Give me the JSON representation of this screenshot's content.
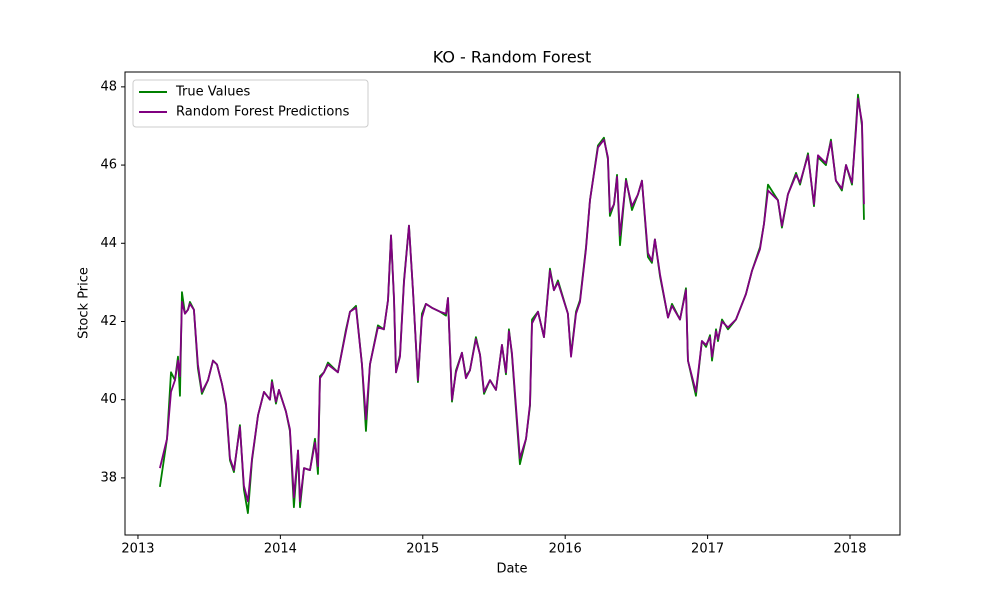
{
  "chart_data": {
    "type": "line",
    "title": "KO - Random Forest",
    "x_label": "Date",
    "y_label": "Stock Price",
    "x": [
      2013.154,
      2013.204,
      2013.232,
      2013.26,
      2013.281,
      2013.295,
      2013.309,
      2013.33,
      2013.351,
      2013.365,
      2013.393,
      2013.421,
      2013.449,
      2013.492,
      2013.527,
      2013.555,
      2013.59,
      2013.618,
      2013.646,
      2013.674,
      2013.716,
      2013.744,
      2013.772,
      2013.801,
      2013.843,
      2013.885,
      2013.927,
      2013.941,
      2013.969,
      2013.99,
      2014.039,
      2014.067,
      2014.095,
      2014.124,
      2014.138,
      2014.166,
      2014.208,
      2014.243,
      2014.264,
      2014.278,
      2014.306,
      2014.334,
      2014.404,
      2014.461,
      2014.489,
      2014.531,
      2014.573,
      2014.601,
      2014.629,
      2014.685,
      2014.727,
      2014.756,
      2014.777,
      2014.798,
      2014.812,
      2014.84,
      2014.868,
      2014.903,
      2014.931,
      2014.966,
      2014.994,
      2015.022,
      2015.064,
      2015.121,
      2015.163,
      2015.177,
      2015.205,
      2015.233,
      2015.275,
      2015.303,
      2015.331,
      2015.373,
      2015.402,
      2015.43,
      2015.472,
      2015.514,
      2015.556,
      2015.584,
      2015.605,
      2015.626,
      2015.682,
      2015.725,
      2015.753,
      2015.767,
      2015.809,
      2015.851,
      2015.893,
      2015.921,
      2015.949,
      2016.019,
      2016.041,
      2016.076,
      2016.104,
      2016.146,
      2016.174,
      2016.23,
      2016.272,
      2016.3,
      2016.314,
      2016.343,
      2016.364,
      2016.385,
      2016.427,
      2016.469,
      2016.511,
      2016.539,
      2016.581,
      2016.609,
      2016.63,
      2016.666,
      2016.722,
      2016.75,
      2016.806,
      2016.848,
      2016.862,
      2016.918,
      2016.96,
      2016.989,
      2017.017,
      2017.031,
      2017.059,
      2017.073,
      2017.101,
      2017.143,
      2017.199,
      2017.269,
      2017.312,
      2017.368,
      2017.396,
      2017.424,
      2017.494,
      2017.522,
      2017.564,
      2017.621,
      2017.649,
      2017.705,
      2017.747,
      2017.775,
      2017.831,
      2017.866,
      2017.901,
      2017.943,
      2017.972,
      2018.014,
      2018.042,
      2018.056,
      2018.084,
      2018.098
    ],
    "series": [
      {
        "name": "True Values",
        "color": "#008000",
        "values": [
          37.77,
          39.0,
          40.7,
          40.5,
          41.1,
          40.1,
          42.75,
          42.2,
          42.3,
          42.5,
          42.3,
          40.8,
          40.15,
          40.5,
          41.0,
          40.9,
          40.4,
          39.85,
          38.45,
          38.15,
          39.35,
          37.7,
          37.1,
          38.45,
          39.6,
          40.2,
          40.0,
          40.5,
          39.9,
          40.25,
          39.7,
          39.2,
          37.25,
          38.7,
          37.25,
          38.25,
          38.2,
          39.0,
          38.1,
          40.6,
          40.7,
          40.95,
          40.7,
          41.8,
          42.25,
          42.4,
          40.9,
          39.2,
          40.9,
          41.9,
          41.8,
          42.55,
          44.2,
          42.55,
          40.7,
          41.15,
          43.05,
          44.45,
          42.8,
          40.45,
          42.2,
          42.45,
          42.35,
          42.25,
          42.15,
          42.6,
          39.95,
          40.75,
          41.2,
          40.6,
          40.75,
          41.6,
          41.15,
          40.15,
          40.5,
          40.25,
          41.4,
          40.65,
          41.8,
          41.15,
          38.35,
          39.0,
          39.85,
          42.05,
          42.25,
          41.6,
          43.35,
          42.8,
          43.05,
          42.2,
          41.15,
          42.25,
          42.55,
          43.9,
          45.1,
          46.5,
          46.7,
          46.15,
          44.7,
          45.0,
          45.75,
          43.95,
          45.65,
          44.85,
          45.25,
          45.6,
          43.65,
          43.5,
          44.1,
          43.15,
          42.1,
          42.45,
          42.05,
          42.85,
          41.0,
          40.1,
          41.5,
          41.35,
          41.65,
          41.0,
          41.8,
          41.5,
          42.05,
          41.8,
          42.05,
          42.7,
          43.3,
          43.9,
          44.5,
          45.5,
          45.1,
          44.4,
          45.25,
          45.8,
          45.5,
          46.3,
          44.95,
          46.2,
          46.0,
          46.65,
          45.6,
          45.35,
          46.0,
          45.5,
          47.0,
          47.8,
          47.0,
          44.6
        ]
      },
      {
        "name": "Random Forest Predictions",
        "color": "#800080",
        "values": [
          38.25,
          39.0,
          40.2,
          40.5,
          41.0,
          40.6,
          42.5,
          42.2,
          42.3,
          42.45,
          42.3,
          40.9,
          40.2,
          40.5,
          41.0,
          40.9,
          40.4,
          39.9,
          38.5,
          38.2,
          39.3,
          37.8,
          37.4,
          38.5,
          39.6,
          40.2,
          40.0,
          40.45,
          39.95,
          40.25,
          39.7,
          39.25,
          37.5,
          38.7,
          37.4,
          38.25,
          38.2,
          38.9,
          38.3,
          40.55,
          40.7,
          40.9,
          40.7,
          41.75,
          42.25,
          42.35,
          40.9,
          39.5,
          40.9,
          41.85,
          41.8,
          42.55,
          44.2,
          42.6,
          40.7,
          41.1,
          43.0,
          44.45,
          42.8,
          40.5,
          42.1,
          42.45,
          42.35,
          42.25,
          42.2,
          42.6,
          40.0,
          40.7,
          41.2,
          40.55,
          40.75,
          41.55,
          41.15,
          40.2,
          40.5,
          40.25,
          41.4,
          40.7,
          41.75,
          41.2,
          38.5,
          39.0,
          39.9,
          41.95,
          42.25,
          41.6,
          43.3,
          42.8,
          43.0,
          42.2,
          41.1,
          42.2,
          42.5,
          43.85,
          45.1,
          46.45,
          46.65,
          46.2,
          44.8,
          45.0,
          45.7,
          44.2,
          45.6,
          44.95,
          45.25,
          45.6,
          43.75,
          43.55,
          44.1,
          43.2,
          42.1,
          42.4,
          42.05,
          42.8,
          41.0,
          40.2,
          41.5,
          41.4,
          41.6,
          41.1,
          41.75,
          41.55,
          42.0,
          41.85,
          42.05,
          42.7,
          43.3,
          43.85,
          44.5,
          45.35,
          45.1,
          44.45,
          45.25,
          45.75,
          45.55,
          46.25,
          45.0,
          46.25,
          46.05,
          46.6,
          45.6,
          45.4,
          46.0,
          45.55,
          46.9,
          47.7,
          47.1,
          45.0
        ]
      }
    ],
    "xlim": [
      2012.909,
      2018.351
    ],
    "xticks": [
      2013,
      2014,
      2015,
      2016,
      2017,
      2018
    ],
    "ylim": [
      36.54,
      48.38
    ],
    "yticks": [
      38,
      40,
      42,
      44,
      46,
      48
    ],
    "legend": "upper left",
    "grid": false
  }
}
